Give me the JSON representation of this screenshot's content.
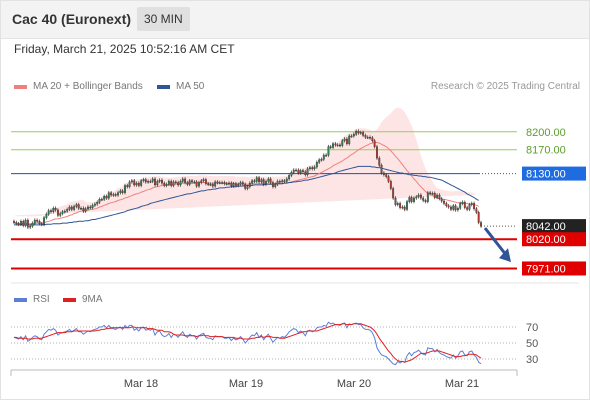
{
  "header": {
    "title": "Cac 40 (Euronext)",
    "timeframe": "30 MIN"
  },
  "timestamp": "Friday, March 21, 2025 10:52:16 AM CET",
  "legend": {
    "ma20": {
      "label": "MA 20 + Bollinger Bands",
      "color": "#f08080"
    },
    "ma50": {
      "label": "MA 50",
      "color": "#2f5597"
    }
  },
  "credit": "Research © 2025 Trading Central",
  "rsi_legend": {
    "rsi": {
      "label": "RSI",
      "color": "#5b7fd6"
    },
    "ma9": {
      "label": "9MA",
      "color": "#e02020"
    }
  },
  "colors": {
    "up_candle": "#2e8b57",
    "down_candle": "#c0392b",
    "bollinger_fill": "#fde0e0",
    "target_line": "#92d050",
    "pivot_line": "#1f4fb5",
    "support_line": "#e00000",
    "arrow": "#2f5597"
  },
  "chart_data": [
    {
      "type": "candlestick",
      "title": "Cac 40 (Euronext)",
      "timeframe": "30 MIN",
      "x_ticks": [
        "Mar 18",
        "Mar 19",
        "Mar 20",
        "Mar 21"
      ],
      "ylim": [
        7950,
        8260
      ],
      "levels": [
        {
          "value": 8200.0,
          "label": "8200.00",
          "style": "target"
        },
        {
          "value": 8170.0,
          "label": "8170.00",
          "style": "target"
        },
        {
          "value": 8130.0,
          "label": "8130.00",
          "style": "pivot"
        },
        {
          "value": 8042.0,
          "label": "8042.00",
          "style": "last"
        },
        {
          "value": 8020.0,
          "label": "8020.00",
          "style": "support"
        },
        {
          "value": 7971.0,
          "label": "7971.00",
          "style": "support"
        }
      ],
      "forecast_arrow": {
        "from": 8042,
        "to": 7975,
        "direction": "down"
      },
      "close": [
        8048,
        8046,
        8045,
        8050,
        8043,
        8052,
        8040,
        8042,
        8047,
        8052,
        8050,
        8046,
        8045,
        8056,
        8062,
        8068,
        8066,
        8072,
        8069,
        8060,
        8063,
        8066,
        8067,
        8070,
        8074,
        8070,
        8075,
        8078,
        8072,
        8072,
        8067,
        8071,
        8074,
        8073,
        8077,
        8079,
        8082,
        8087,
        8087,
        8092,
        8089,
        8098,
        8094,
        8095,
        8094,
        8098,
        8101,
        8098,
        8110,
        8108,
        8116,
        8118,
        8111,
        8114,
        8110,
        8118,
        8120,
        8116,
        8117,
        8117,
        8121,
        8111,
        8117,
        8119,
        8114,
        8110,
        8112,
        8117,
        8110,
        8116,
        8115,
        8111,
        8117,
        8121,
        8115,
        8112,
        8118,
        8116,
        8116,
        8109,
        8115,
        8118,
        8120,
        8113,
        8112,
        8112,
        8109,
        8116,
        8115,
        8115,
        8115,
        8113,
        8113,
        8114,
        8109,
        8113,
        8110,
        8112,
        8115,
        8112,
        8105,
        8108,
        8114,
        8118,
        8117,
        8123,
        8116,
        8120,
        8112,
        8117,
        8121,
        8115,
        8108,
        8112,
        8117,
        8116,
        8118,
        8117,
        8121,
        8127,
        8132,
        8136,
        8136,
        8131,
        8135,
        8133,
        8128,
        8138,
        8140,
        8138,
        8141,
        8149,
        8153,
        8154,
        8161,
        8161,
        8175,
        8174,
        8180,
        8178,
        8178,
        8177,
        8185,
        8188,
        8180,
        8193,
        8193,
        8196,
        8201,
        8198,
        8199,
        8194,
        8191,
        8191,
        8190,
        8185,
        8175,
        8156,
        8144,
        8131,
        8128,
        8125,
        8117,
        8105,
        8089,
        8078,
        8080,
        8073,
        8074,
        8070,
        8083,
        8090,
        8083,
        8089,
        8091,
        8094,
        8089,
        8085,
        8083,
        8098,
        8097,
        8097,
        8090,
        8094,
        8088,
        8084,
        8080,
        8076,
        8074,
        8070,
        8076,
        8069,
        8072,
        8080,
        8082,
        8073,
        8070,
        8078,
        8080,
        8071,
        8065,
        8048,
        8042
      ],
      "ma20": [
        8048,
        8047,
        8046,
        8047,
        8046,
        8047,
        8046,
        8046,
        8046,
        8046,
        8047,
        8047,
        8047,
        8048,
        8049,
        8050,
        8051,
        8053,
        8054,
        8054,
        8055,
        8056,
        8057,
        8058,
        8060,
        8061,
        8063,
        8064,
        8066,
        8067,
        8068,
        8068,
        8069,
        8070,
        8070,
        8071,
        8072,
        8074,
        8075,
        8077,
        8078,
        8080,
        8081,
        8082,
        8083,
        8085,
        8086,
        8087,
        8089,
        8090,
        8092,
        8093,
        8095,
        8096,
        8097,
        8099,
        8100,
        8102,
        8103,
        8104,
        8106,
        8107,
        8108,
        8109,
        8110,
        8110,
        8111,
        8111,
        8111,
        8112,
        8112,
        8113,
        8113,
        8114,
        8114,
        8114,
        8114,
        8114,
        8114,
        8114,
        8115,
        8115,
        8115,
        8115,
        8114,
        8114,
        8114,
        8114,
        8114,
        8114,
        8114,
        8114,
        8114,
        8114,
        8114,
        8114,
        8113,
        8113,
        8113,
        8113,
        8113,
        8112,
        8112,
        8113,
        8113,
        8113,
        8113,
        8113,
        8113,
        8113,
        8113,
        8113,
        8113,
        8113,
        8113,
        8113,
        8113,
        8114,
        8114,
        8115,
        8116,
        8117,
        8118,
        8119,
        8120,
        8121,
        8122,
        8123,
        8124,
        8125,
        8126,
        8128,
        8130,
        8132,
        8134,
        8136,
        8138,
        8140,
        8143,
        8145,
        8147,
        8149,
        8151,
        8154,
        8156,
        8159,
        8162,
        8164,
        8167,
        8170,
        8172,
        8174,
        8176,
        8178,
        8180,
        8181,
        8182,
        8182,
        8181,
        8179,
        8177,
        8175,
        8172,
        8168,
        8164,
        8159,
        8155,
        8150,
        8145,
        8140,
        8135,
        8131,
        8126,
        8121,
        8117,
        8112,
        8108,
        8104,
        8100,
        8097,
        8095,
        8093,
        8091,
        8089,
        8088,
        8087,
        8087,
        8086,
        8085,
        8084,
        8083,
        8082,
        8081,
        8081,
        8080,
        8080,
        8080,
        8079,
        8079,
        8078,
        8077,
        8075
      ],
      "ma50": [
        8044,
        8044,
        8044,
        8044,
        8044,
        8044,
        8044,
        8044,
        8044,
        8044,
        8044,
        8044,
        8044,
        8044,
        8045,
        8045,
        8045,
        8046,
        8046,
        8046,
        8046,
        8047,
        8047,
        8047,
        8048,
        8048,
        8049,
        8049,
        8050,
        8050,
        8050,
        8051,
        8051,
        8052,
        8053,
        8053,
        8054,
        8055,
        8056,
        8057,
        8058,
        8059,
        8060,
        8061,
        8062,
        8063,
        8064,
        8065,
        8066,
        8068,
        8069,
        8070,
        8071,
        8072,
        8073,
        8075,
        8076,
        8077,
        8078,
        8080,
        8081,
        8082,
        8083,
        8084,
        8085,
        8086,
        8087,
        8088,
        8089,
        8090,
        8091,
        8092,
        8093,
        8094,
        8095,
        8096,
        8096,
        8097,
        8098,
        8099,
        8100,
        8101,
        8101,
        8102,
        8103,
        8103,
        8104,
        8104,
        8105,
        8106,
        8106,
        8106,
        8107,
        8107,
        8108,
        8108,
        8108,
        8109,
        8109,
        8109,
        8110,
        8110,
        8110,
        8110,
        8111,
        8111,
        8111,
        8111,
        8111,
        8112,
        8112,
        8112,
        8112,
        8113,
        8113,
        8113,
        8113,
        8114,
        8114,
        8115,
        8115,
        8116,
        8116,
        8117,
        8117,
        8118,
        8119,
        8119,
        8120,
        8121,
        8122,
        8123,
        8124,
        8125,
        8126,
        8127,
        8128,
        8129,
        8130,
        8131,
        8133,
        8134,
        8135,
        8136,
        8137,
        8138,
        8139,
        8140,
        8141,
        8142,
        8142,
        8142,
        8142,
        8142,
        8142,
        8141,
        8141,
        8140,
        8140,
        8139,
        8138,
        8137,
        8136,
        8135,
        8134,
        8133,
        8132,
        8131,
        8131,
        8130,
        8129,
        8128,
        8128,
        8127,
        8127,
        8126,
        8126,
        8125,
        8125,
        8124,
        8124,
        8123,
        8122,
        8121,
        8120,
        8119,
        8117,
        8115,
        8113,
        8111,
        8109,
        8107,
        8105,
        8103,
        8101,
        8099,
        8096,
        8094,
        8092,
        8090,
        8087,
        8085
      ]
    },
    {
      "type": "line",
      "title": "RSI",
      "x_ticks": [
        "Mar 18",
        "Mar 19",
        "Mar 20",
        "Mar 21"
      ],
      "y_ticks": [
        70,
        50,
        30
      ],
      "ylim": [
        25,
        80
      ],
      "series": [
        {
          "name": "RSI",
          "values": [
            57,
            56,
            55,
            58,
            54,
            59,
            52,
            54,
            57,
            59,
            58,
            55,
            54,
            61,
            64,
            67,
            66,
            68,
            66,
            60,
            62,
            63,
            64,
            65,
            67,
            64,
            66,
            68,
            64,
            64,
            61,
            63,
            65,
            64,
            66,
            67,
            68,
            70,
            70,
            72,
            69,
            72,
            68,
            68,
            67,
            69,
            70,
            67,
            72,
            69,
            72,
            72,
            66,
            68,
            65,
            69,
            70,
            66,
            67,
            66,
            68,
            60,
            64,
            65,
            60,
            58,
            59,
            62,
            57,
            61,
            60,
            57,
            61,
            64,
            59,
            57,
            61,
            59,
            59,
            55,
            59,
            61,
            62,
            57,
            56,
            56,
            54,
            59,
            58,
            58,
            58,
            56,
            56,
            57,
            53,
            56,
            54,
            55,
            58,
            55,
            50,
            53,
            57,
            60,
            59,
            63,
            57,
            60,
            54,
            58,
            61,
            56,
            51,
            54,
            57,
            56,
            58,
            57,
            60,
            64,
            66,
            68,
            67,
            63,
            65,
            63,
            59,
            65,
            66,
            64,
            65,
            69,
            70,
            70,
            72,
            71,
            76,
            74,
            75,
            73,
            73,
            72,
            74,
            75,
            69,
            74,
            73,
            74,
            75,
            73,
            73,
            69,
            67,
            67,
            66,
            63,
            56,
            44,
            39,
            35,
            34,
            33,
            30,
            27,
            24,
            23,
            27,
            25,
            27,
            26,
            34,
            38,
            34,
            38,
            39,
            41,
            38,
            36,
            35,
            44,
            43,
            43,
            39,
            42,
            38,
            36,
            35,
            33,
            32,
            31,
            35,
            31,
            34,
            39,
            40,
            35,
            34,
            39,
            40,
            35,
            32,
            26,
            24
          ]
        },
        {
          "name": "9MA",
          "values": [
            57,
            57,
            56,
            56,
            56,
            56,
            55,
            55,
            55,
            56,
            56,
            56,
            56,
            57,
            58,
            59,
            60,
            61,
            62,
            63,
            63,
            63,
            63,
            64,
            64,
            64,
            65,
            65,
            65,
            65,
            65,
            65,
            65,
            65,
            65,
            65,
            66,
            66,
            67,
            67,
            68,
            68,
            69,
            69,
            69,
            69,
            69,
            69,
            69,
            69,
            69,
            70,
            70,
            69,
            69,
            69,
            69,
            69,
            68,
            68,
            68,
            67,
            66,
            66,
            66,
            64,
            64,
            64,
            63,
            61,
            60,
            60,
            60,
            60,
            59,
            59,
            59,
            59,
            59,
            58,
            59,
            59,
            60,
            59,
            59,
            58,
            58,
            58,
            58,
            58,
            58,
            57,
            57,
            57,
            57,
            57,
            56,
            56,
            56,
            55,
            55,
            55,
            55,
            56,
            56,
            57,
            57,
            58,
            57,
            58,
            58,
            58,
            57,
            57,
            57,
            56,
            56,
            56,
            57,
            58,
            59,
            60,
            61,
            62,
            63,
            64,
            64,
            65,
            65,
            65,
            65,
            65,
            66,
            67,
            68,
            69,
            70,
            71,
            72,
            73,
            73,
            73,
            74,
            74,
            73,
            73,
            73,
            74,
            74,
            74,
            74,
            73,
            72,
            71,
            70,
            68,
            65,
            61,
            56,
            52,
            48,
            44,
            40,
            37,
            33,
            30,
            28,
            27,
            27,
            26,
            27,
            28,
            29,
            31,
            33,
            35,
            37,
            37,
            37,
            38,
            39,
            40,
            40,
            40,
            40,
            39,
            38,
            37,
            36,
            35,
            34,
            33,
            33,
            33,
            34,
            34,
            35,
            36,
            36,
            36,
            35,
            33,
            31
          ]
        }
      ]
    }
  ]
}
